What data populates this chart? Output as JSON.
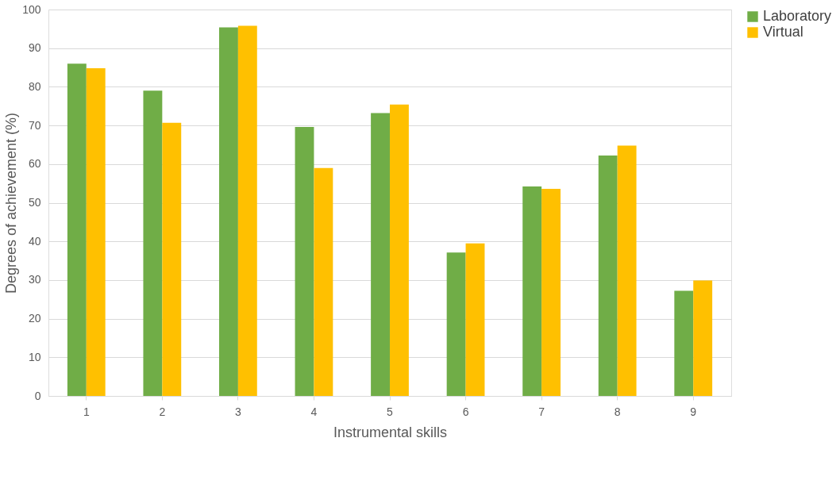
{
  "chart_data": {
    "type": "bar",
    "xlabel": "Instrumental skills",
    "ylabel": "Degrees of achievement (%)",
    "categories": [
      "1",
      "2",
      "3",
      "4",
      "5",
      "6",
      "7",
      "8",
      "9"
    ],
    "series": [
      {
        "name": "Laboratory",
        "color": "#70ad47",
        "values": [
          86.0,
          79.0,
          95.4,
          69.6,
          73.2,
          37.1,
          54.2,
          62.2,
          27.2
        ]
      },
      {
        "name": "Virtual",
        "color": "#ffc000",
        "values": [
          84.8,
          70.7,
          95.8,
          59.0,
          75.4,
          39.5,
          53.6,
          64.8,
          29.9
        ]
      }
    ],
    "ylim": [
      0,
      100
    ],
    "yticks": [
      0,
      10,
      20,
      30,
      40,
      50,
      60,
      70,
      80,
      90,
      100
    ],
    "grid": "y",
    "legend": "right"
  }
}
